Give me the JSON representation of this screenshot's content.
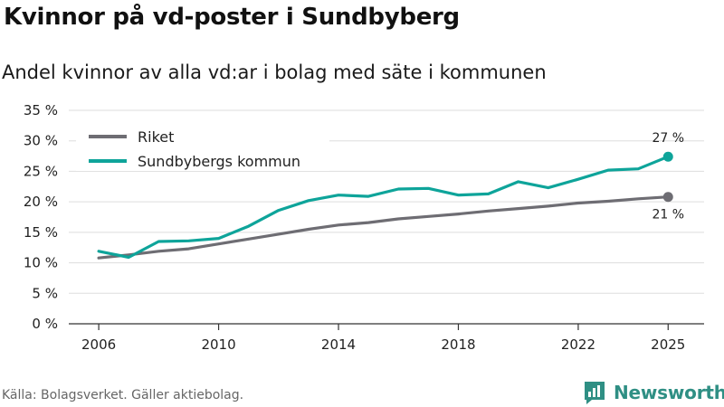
{
  "chart_data": {
    "type": "line",
    "title": "Kvinnor på vd-poster i Sundbyberg",
    "subtitle": "Andel kvinnor av alla vd:ar i bolag med säte i kommunen",
    "x": [
      2006,
      2007,
      2008,
      2009,
      2010,
      2011,
      2012,
      2013,
      2014,
      2015,
      2016,
      2017,
      2018,
      2019,
      2020,
      2021,
      2022,
      2023,
      2024,
      2025
    ],
    "series": [
      {
        "name": "Riket",
        "color": "#6e6d73",
        "values": [
          10.8,
          11.3,
          11.9,
          12.3,
          13.1,
          13.9,
          14.7,
          15.5,
          16.2,
          16.6,
          17.2,
          17.6,
          18.0,
          18.5,
          18.9,
          19.3,
          19.8,
          20.1,
          20.5,
          20.8
        ],
        "end_label": "21 %"
      },
      {
        "name": "Sundbybergs kommun",
        "color": "#0ea49a",
        "values": [
          11.9,
          10.9,
          13.5,
          13.6,
          14.0,
          16.0,
          18.6,
          20.2,
          21.1,
          20.9,
          22.1,
          22.2,
          21.1,
          21.3,
          23.3,
          22.3,
          23.7,
          25.2,
          25.4,
          27.4
        ],
        "end_label": "27 %"
      }
    ],
    "ylim": [
      0,
      35
    ],
    "y_ticks": [
      0,
      5,
      10,
      15,
      20,
      25,
      30,
      35
    ],
    "y_tick_labels": [
      "0 %",
      "5 %",
      "10 %",
      "15 %",
      "20 %",
      "25 %",
      "30 %",
      "35 %"
    ],
    "x_ticks": [
      2006,
      2010,
      2014,
      2018,
      2022,
      2025
    ],
    "x_tick_labels": [
      "2006",
      "2010",
      "2014",
      "2018",
      "2022",
      "2025"
    ],
    "xlabel": "",
    "ylabel": "",
    "grid": true,
    "legend_position": "top-left"
  },
  "footer": {
    "source": "Källa: Bolagsverket. Gäller aktiebolag.",
    "brand": "Newsworthy"
  },
  "colors": {
    "grid": "#dddddd",
    "axis": "#333333",
    "brand": "#2f8f84"
  }
}
